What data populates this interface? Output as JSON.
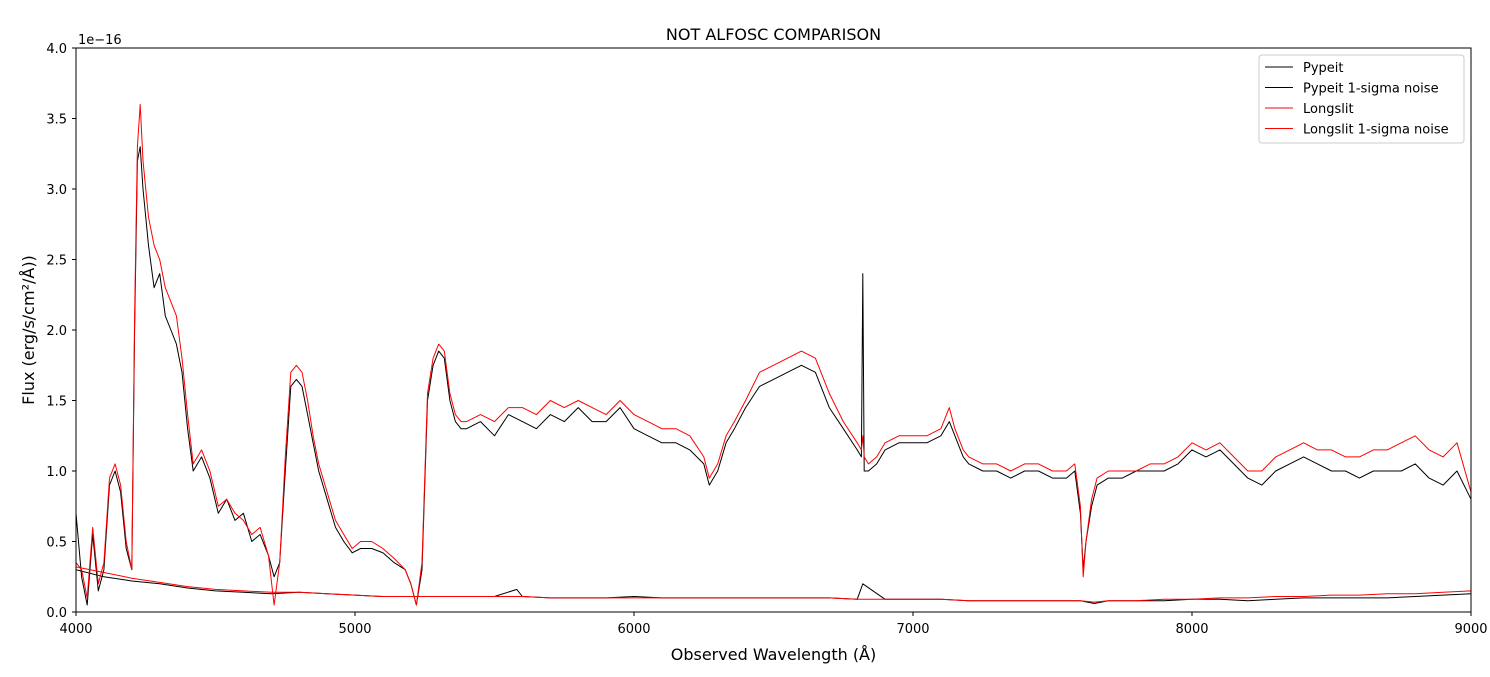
{
  "chart_data": {
    "type": "line",
    "title": "NOT ALFOSC COMPARISON",
    "xlabel": "Observed Wavelength (Å)",
    "ylabel": "Flux (erg/s/cm²/Å))",
    "y_offset_text": "1e−16",
    "xlim": [
      4000,
      9000
    ],
    "ylim": [
      0.0,
      4.0
    ],
    "x_ticks": [
      4000,
      5000,
      6000,
      7000,
      8000,
      9000
    ],
    "x_tick_labels": [
      "4000",
      "5000",
      "6000",
      "7000",
      "8000",
      "9000"
    ],
    "y_ticks": [
      0.0,
      0.5,
      1.0,
      1.5,
      2.0,
      2.5,
      3.0,
      3.5,
      4.0
    ],
    "y_tick_labels": [
      "0.0",
      "0.5",
      "1.0",
      "1.5",
      "2.0",
      "2.5",
      "3.0",
      "3.5",
      "4.0"
    ],
    "grid": false,
    "legend_position": "top-right",
    "colors": {
      "pypeit": "#000000",
      "longslit": "#ff0000"
    },
    "series": [
      {
        "name": "Pypeit",
        "color": "#000000",
        "x": [
          4000,
          4020,
          4040,
          4060,
          4080,
          4100,
          4120,
          4140,
          4160,
          4180,
          4200,
          4210,
          4220,
          4230,
          4240,
          4260,
          4280,
          4300,
          4320,
          4340,
          4360,
          4380,
          4400,
          4420,
          4450,
          4480,
          4510,
          4540,
          4570,
          4600,
          4630,
          4660,
          4690,
          4710,
          4730,
          4750,
          4770,
          4790,
          4810,
          4830,
          4850,
          4870,
          4900,
          4930,
          4960,
          4990,
          5020,
          5060,
          5100,
          5140,
          5180,
          5200,
          5220,
          5240,
          5260,
          5280,
          5300,
          5320,
          5340,
          5360,
          5380,
          5400,
          5450,
          5500,
          5550,
          5600,
          5650,
          5700,
          5750,
          5800,
          5850,
          5900,
          5950,
          6000,
          6050,
          6100,
          6150,
          6200,
          6250,
          6270,
          6300,
          6330,
          6360,
          6400,
          6450,
          6500,
          6550,
          6600,
          6650,
          6700,
          6750,
          6800,
          6815,
          6820,
          6825,
          6840,
          6870,
          6900,
          6950,
          7000,
          7050,
          7100,
          7130,
          7150,
          7180,
          7200,
          7250,
          7300,
          7350,
          7400,
          7450,
          7500,
          7550,
          7580,
          7600,
          7610,
          7620,
          7640,
          7660,
          7700,
          7750,
          7800,
          7850,
          7900,
          7950,
          8000,
          8050,
          8100,
          8150,
          8200,
          8250,
          8300,
          8350,
          8400,
          8450,
          8500,
          8550,
          8600,
          8650,
          8700,
          8750,
          8800,
          8850,
          8900,
          8950,
          9000
        ],
        "y": [
          0.7,
          0.25,
          0.05,
          0.55,
          0.15,
          0.3,
          0.9,
          1.0,
          0.85,
          0.45,
          0.3,
          2.0,
          3.2,
          3.3,
          3.0,
          2.6,
          2.3,
          2.4,
          2.1,
          2.0,
          1.9,
          1.7,
          1.3,
          1.0,
          1.1,
          0.95,
          0.7,
          0.8,
          0.65,
          0.7,
          0.5,
          0.55,
          0.4,
          0.25,
          0.35,
          1.0,
          1.6,
          1.65,
          1.6,
          1.4,
          1.2,
          1.0,
          0.8,
          0.6,
          0.5,
          0.42,
          0.45,
          0.45,
          0.42,
          0.35,
          0.3,
          0.2,
          0.05,
          0.3,
          1.5,
          1.75,
          1.85,
          1.8,
          1.5,
          1.35,
          1.3,
          1.3,
          1.35,
          1.25,
          1.4,
          1.35,
          1.3,
          1.4,
          1.35,
          1.45,
          1.35,
          1.35,
          1.45,
          1.3,
          1.25,
          1.2,
          1.2,
          1.15,
          1.05,
          0.9,
          1.0,
          1.2,
          1.3,
          1.45,
          1.6,
          1.65,
          1.7,
          1.75,
          1.7,
          1.45,
          1.3,
          1.15,
          1.1,
          2.4,
          1.0,
          1.0,
          1.05,
          1.15,
          1.2,
          1.2,
          1.2,
          1.25,
          1.35,
          1.25,
          1.1,
          1.05,
          1.0,
          1.0,
          0.95,
          1.0,
          1.0,
          0.95,
          0.95,
          1.0,
          0.7,
          0.3,
          0.5,
          0.75,
          0.9,
          0.95,
          0.95,
          1.0,
          1.0,
          1.0,
          1.05,
          1.15,
          1.1,
          1.15,
          1.05,
          0.95,
          0.9,
          1.0,
          1.05,
          1.1,
          1.05,
          1.0,
          1.0,
          0.95,
          1.0,
          1.0,
          1.0,
          1.05,
          0.95,
          0.9,
          1.0,
          0.8
        ]
      },
      {
        "name": "Pypeit 1-sigma noise",
        "color": "#000000",
        "x": [
          4000,
          4100,
          4200,
          4300,
          4400,
          4500,
          4600,
          4700,
          4800,
          4900,
          5000,
          5100,
          5200,
          5300,
          5400,
          5500,
          5580,
          5600,
          5700,
          5800,
          5900,
          6000,
          6100,
          6200,
          6300,
          6400,
          6500,
          6600,
          6700,
          6800,
          6820,
          6900,
          7000,
          7100,
          7200,
          7300,
          7400,
          7500,
          7600,
          7650,
          7700,
          7800,
          7900,
          8000,
          8100,
          8200,
          8300,
          8400,
          8500,
          8600,
          8700,
          8800,
          8900,
          9000
        ],
        "y": [
          0.3,
          0.25,
          0.22,
          0.2,
          0.17,
          0.15,
          0.14,
          0.13,
          0.14,
          0.13,
          0.12,
          0.11,
          0.11,
          0.11,
          0.11,
          0.11,
          0.16,
          0.11,
          0.1,
          0.1,
          0.1,
          0.11,
          0.1,
          0.1,
          0.1,
          0.1,
          0.1,
          0.1,
          0.1,
          0.09,
          0.2,
          0.09,
          0.09,
          0.09,
          0.08,
          0.08,
          0.08,
          0.08,
          0.08,
          0.06,
          0.08,
          0.08,
          0.08,
          0.09,
          0.09,
          0.08,
          0.09,
          0.1,
          0.1,
          0.1,
          0.1,
          0.11,
          0.12,
          0.13
        ]
      },
      {
        "name": "Longslit",
        "color": "#ff0000",
        "x": [
          4000,
          4020,
          4040,
          4060,
          4080,
          4100,
          4120,
          4140,
          4160,
          4180,
          4200,
          4210,
          4220,
          4230,
          4240,
          4260,
          4280,
          4300,
          4320,
          4340,
          4360,
          4380,
          4400,
          4420,
          4450,
          4480,
          4510,
          4540,
          4570,
          4600,
          4630,
          4660,
          4690,
          4710,
          4730,
          4750,
          4770,
          4790,
          4810,
          4830,
          4850,
          4870,
          4900,
          4930,
          4960,
          4990,
          5020,
          5060,
          5100,
          5140,
          5180,
          5200,
          5220,
          5240,
          5260,
          5280,
          5300,
          5320,
          5340,
          5360,
          5380,
          5400,
          5450,
          5500,
          5550,
          5600,
          5650,
          5700,
          5750,
          5800,
          5850,
          5900,
          5950,
          6000,
          6050,
          6100,
          6150,
          6200,
          6250,
          6270,
          6300,
          6330,
          6360,
          6400,
          6450,
          6500,
          6550,
          6600,
          6650,
          6700,
          6750,
          6800,
          6815,
          6820,
          6825,
          6840,
          6870,
          6900,
          6950,
          7000,
          7050,
          7100,
          7130,
          7150,
          7180,
          7200,
          7250,
          7300,
          7350,
          7400,
          7450,
          7500,
          7550,
          7580,
          7600,
          7610,
          7620,
          7640,
          7660,
          7700,
          7750,
          7800,
          7850,
          7900,
          7950,
          8000,
          8050,
          8100,
          8150,
          8200,
          8250,
          8300,
          8350,
          8400,
          8450,
          8500,
          8550,
          8600,
          8650,
          8700,
          8750,
          8800,
          8850,
          8900,
          8950,
          9000
        ],
        "y": [
          0.35,
          0.3,
          0.1,
          0.6,
          0.2,
          0.35,
          0.95,
          1.05,
          0.9,
          0.5,
          0.3,
          2.1,
          3.3,
          3.6,
          3.2,
          2.8,
          2.6,
          2.5,
          2.3,
          2.2,
          2.1,
          1.8,
          1.4,
          1.05,
          1.15,
          1.0,
          0.75,
          0.8,
          0.7,
          0.65,
          0.55,
          0.6,
          0.4,
          0.05,
          0.35,
          1.1,
          1.7,
          1.75,
          1.7,
          1.5,
          1.25,
          1.05,
          0.85,
          0.65,
          0.55,
          0.45,
          0.5,
          0.5,
          0.45,
          0.38,
          0.3,
          0.2,
          0.05,
          0.35,
          1.55,
          1.8,
          1.9,
          1.85,
          1.55,
          1.4,
          1.35,
          1.35,
          1.4,
          1.35,
          1.45,
          1.45,
          1.4,
          1.5,
          1.45,
          1.5,
          1.45,
          1.4,
          1.5,
          1.4,
          1.35,
          1.3,
          1.3,
          1.25,
          1.1,
          0.95,
          1.05,
          1.25,
          1.35,
          1.5,
          1.7,
          1.75,
          1.8,
          1.85,
          1.8,
          1.55,
          1.35,
          1.2,
          1.15,
          1.25,
          1.1,
          1.05,
          1.1,
          1.2,
          1.25,
          1.25,
          1.25,
          1.3,
          1.45,
          1.3,
          1.15,
          1.1,
          1.05,
          1.05,
          1.0,
          1.05,
          1.05,
          1.0,
          1.0,
          1.05,
          0.75,
          0.25,
          0.5,
          0.8,
          0.95,
          1.0,
          1.0,
          1.0,
          1.05,
          1.05,
          1.1,
          1.2,
          1.15,
          1.2,
          1.1,
          1.0,
          1.0,
          1.1,
          1.15,
          1.2,
          1.15,
          1.15,
          1.1,
          1.1,
          1.15,
          1.15,
          1.2,
          1.25,
          1.15,
          1.1,
          1.2,
          0.85
        ]
      },
      {
        "name": "Longslit 1-sigma noise",
        "color": "#ff0000",
        "x": [
          4000,
          4100,
          4200,
          4300,
          4400,
          4500,
          4600,
          4700,
          4800,
          4900,
          5000,
          5100,
          5200,
          5300,
          5400,
          5500,
          5600,
          5700,
          5800,
          5900,
          6000,
          6100,
          6200,
          6300,
          6400,
          6500,
          6600,
          6700,
          6800,
          6900,
          7000,
          7100,
          7200,
          7300,
          7400,
          7500,
          7600,
          7650,
          7700,
          7800,
          7900,
          8000,
          8100,
          8200,
          8300,
          8400,
          8500,
          8600,
          8700,
          8800,
          8900,
          9000
        ],
        "y": [
          0.32,
          0.28,
          0.24,
          0.21,
          0.18,
          0.16,
          0.15,
          0.14,
          0.14,
          0.13,
          0.12,
          0.11,
          0.11,
          0.11,
          0.11,
          0.11,
          0.11,
          0.1,
          0.1,
          0.1,
          0.1,
          0.1,
          0.1,
          0.1,
          0.1,
          0.1,
          0.1,
          0.1,
          0.09,
          0.09,
          0.09,
          0.09,
          0.08,
          0.08,
          0.08,
          0.08,
          0.08,
          0.07,
          0.08,
          0.08,
          0.09,
          0.09,
          0.1,
          0.1,
          0.11,
          0.11,
          0.12,
          0.12,
          0.13,
          0.13,
          0.14,
          0.15
        ]
      }
    ]
  }
}
